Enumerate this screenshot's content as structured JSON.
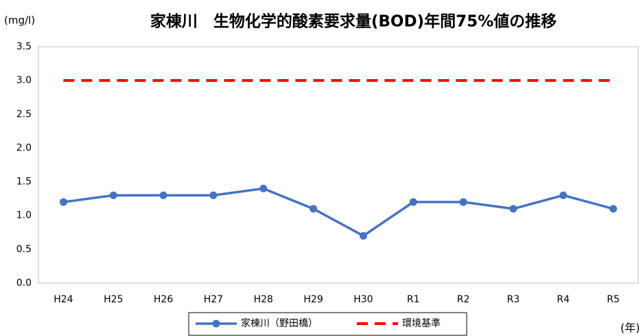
{
  "chart_data": {
    "type": "line",
    "title": "家棟川　生物化学的酸素要求量(BOD)年間75%値の推移",
    "y_label": "(mg/l)",
    "x_label": "(年)",
    "categories": [
      "H24",
      "H25",
      "H26",
      "H27",
      "H28",
      "H29",
      "H30",
      "R1",
      "R2",
      "R3",
      "R4",
      "R5"
    ],
    "series": [
      {
        "name": "家棟川（野田橋）",
        "color": "#4472c4",
        "marker": "circle",
        "linestyle": "solid",
        "values": [
          1.2,
          1.3,
          1.3,
          1.3,
          1.4,
          1.1,
          0.7,
          1.2,
          1.2,
          1.1,
          1.3,
          1.1
        ]
      },
      {
        "name": "環境基準",
        "color": "#ff0000",
        "marker": "none",
        "linestyle": "dashed",
        "values": [
          3.0,
          3.0,
          3.0,
          3.0,
          3.0,
          3.0,
          3.0,
          3.0,
          3.0,
          3.0,
          3.0,
          3.0
        ]
      }
    ],
    "ylim": [
      0,
      3.5
    ],
    "yticks": [
      {
        "value": 0,
        "label": "0.0"
      },
      0.5,
      {
        "value": 1,
        "label": "1.0"
      },
      1.5,
      {
        "value": 2,
        "label": "2.0"
      },
      2.5,
      {
        "value": 3,
        "label": "3.0"
      },
      3.5
    ],
    "grid": false,
    "legend": "bottom"
  }
}
